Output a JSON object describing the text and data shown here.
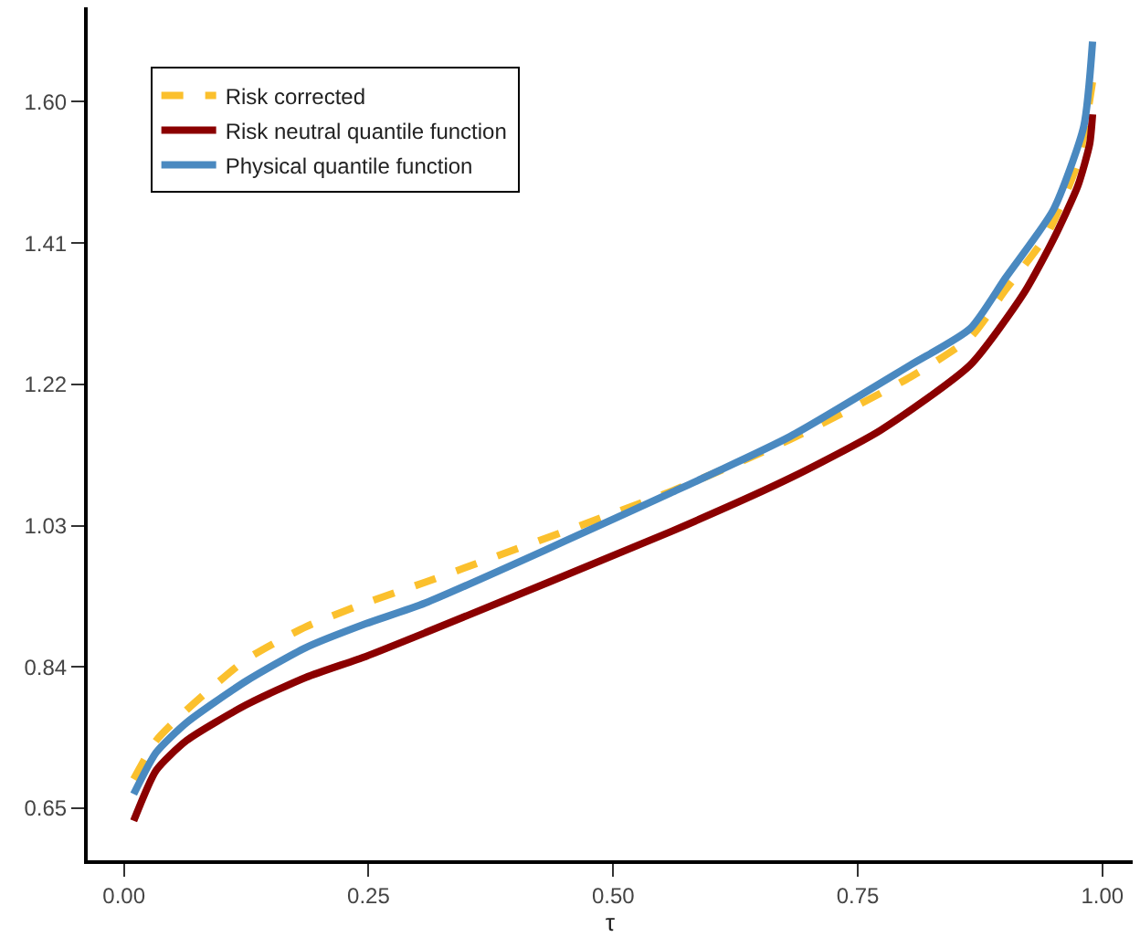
{
  "chart_data": {
    "type": "line",
    "xlabel": "τ",
    "xlim": [
      -0.037,
      1.031
    ],
    "ylim": [
      0.58,
      1.727
    ],
    "xticks": [
      {
        "value": 0,
        "label": "0.00"
      },
      {
        "value": 0.25,
        "label": "0.25"
      },
      {
        "value": 0.5,
        "label": "0.50"
      },
      {
        "value": 0.75,
        "label": "0.75"
      },
      {
        "value": 1,
        "label": "1.00"
      }
    ],
    "yticks": [
      0.65,
      0.84,
      1.03,
      1.22,
      1.41,
      {
        "value": 1.6,
        "label": "1.60"
      }
    ],
    "legend": "top left",
    "marker": "none",
    "series": [
      {
        "name": "Risk corrected",
        "color": "#fbc02d",
        "line_style": "dashed",
        "x": [
          0.01,
          0.033,
          0.064,
          0.125,
          0.186,
          0.247,
          0.308,
          0.559,
          0.681,
          0.804,
          0.865,
          0.901,
          0.944,
          0.975,
          0.99
        ],
        "values": [
          0.689,
          0.741,
          0.782,
          0.85,
          0.894,
          0.926,
          0.954,
          1.076,
          1.146,
          1.23,
          1.283,
          1.347,
          1.423,
          1.519,
          1.627
        ]
      },
      {
        "name": "Risk neutral quantile function",
        "color": "#8b0000",
        "line_style": "solid",
        "x": [
          0.01,
          0.033,
          0.064,
          0.125,
          0.186,
          0.247,
          0.308,
          0.559,
          0.681,
          0.773,
          0.865,
          0.92,
          0.95,
          0.975,
          0.987,
          0.99
        ],
        "values": [
          0.633,
          0.701,
          0.741,
          0.789,
          0.826,
          0.854,
          0.886,
          1.022,
          1.094,
          1.158,
          1.246,
          1.343,
          1.415,
          1.487,
          1.543,
          1.583
        ]
      },
      {
        "name": "Physical quantile function",
        "color": "#4a89c0",
        "line_style": "solid",
        "x": [
          0.01,
          0.033,
          0.064,
          0.125,
          0.186,
          0.247,
          0.308,
          0.559,
          0.681,
          0.804,
          0.865,
          0.901,
          0.95,
          0.981,
          0.99
        ],
        "values": [
          0.669,
          0.725,
          0.765,
          0.821,
          0.866,
          0.898,
          0.926,
          1.074,
          1.15,
          1.246,
          1.295,
          1.363,
          1.455,
          1.567,
          1.681
        ]
      }
    ]
  }
}
